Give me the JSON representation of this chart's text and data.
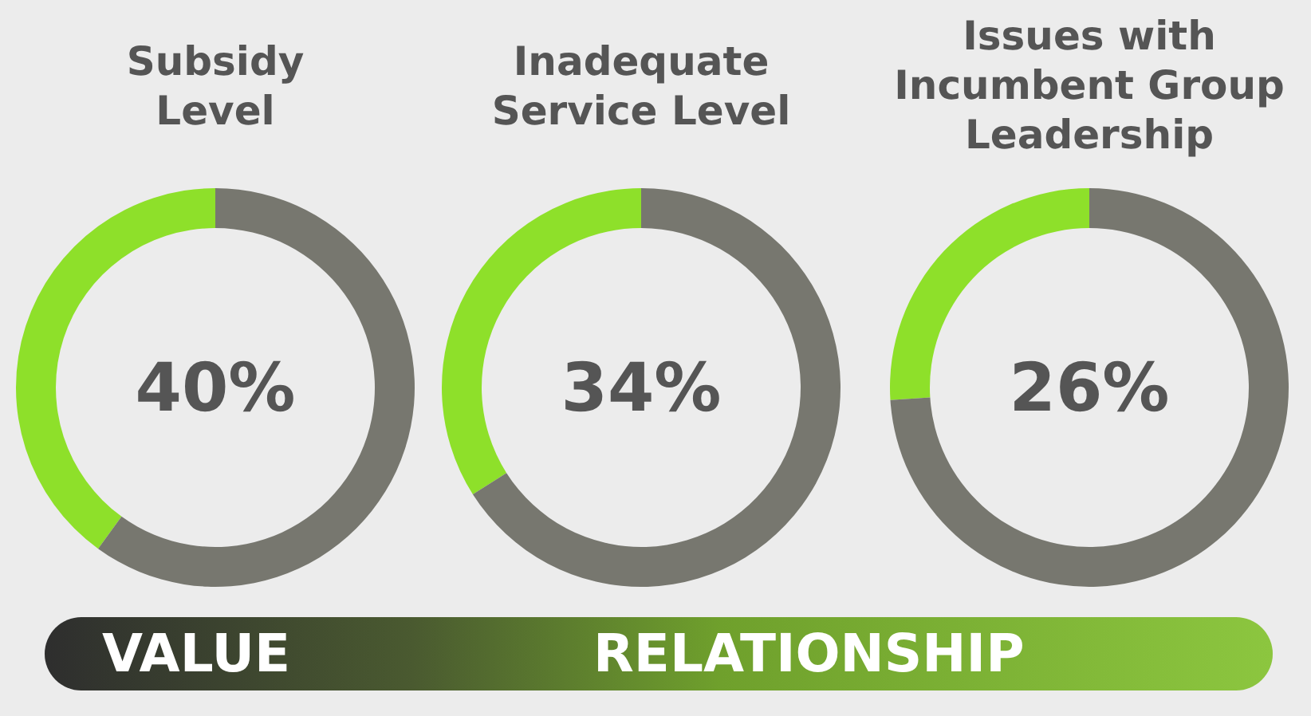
{
  "chart_data": [
    {
      "type": "donut",
      "title": "Subsidy\nLevel",
      "categories": [
        null,
        null
      ],
      "values": [
        40,
        60
      ],
      "colors": [
        "#8ee02a",
        "#77776f"
      ],
      "value_labels": [
        "40%",
        null
      ]
    },
    {
      "type": "donut",
      "title": "Inadequate\nService Level",
      "categories": [
        null,
        null
      ],
      "values": [
        34,
        66
      ],
      "colors": [
        "#8ee02a",
        "#77776f"
      ],
      "value_labels": [
        "34%",
        null
      ]
    },
    {
      "type": "donut",
      "title": "Issues with\nIncumbent Group\nLeadership",
      "categories": [
        null,
        null
      ],
      "values": [
        26,
        74
      ],
      "colors": [
        "#8ee02a",
        "#77776f"
      ],
      "value_labels": [
        "26%",
        null
      ]
    },
    {
      "type": "other",
      "annotations": [
        "VALUE",
        "RELATIONSHIP"
      ]
    }
  ]
}
